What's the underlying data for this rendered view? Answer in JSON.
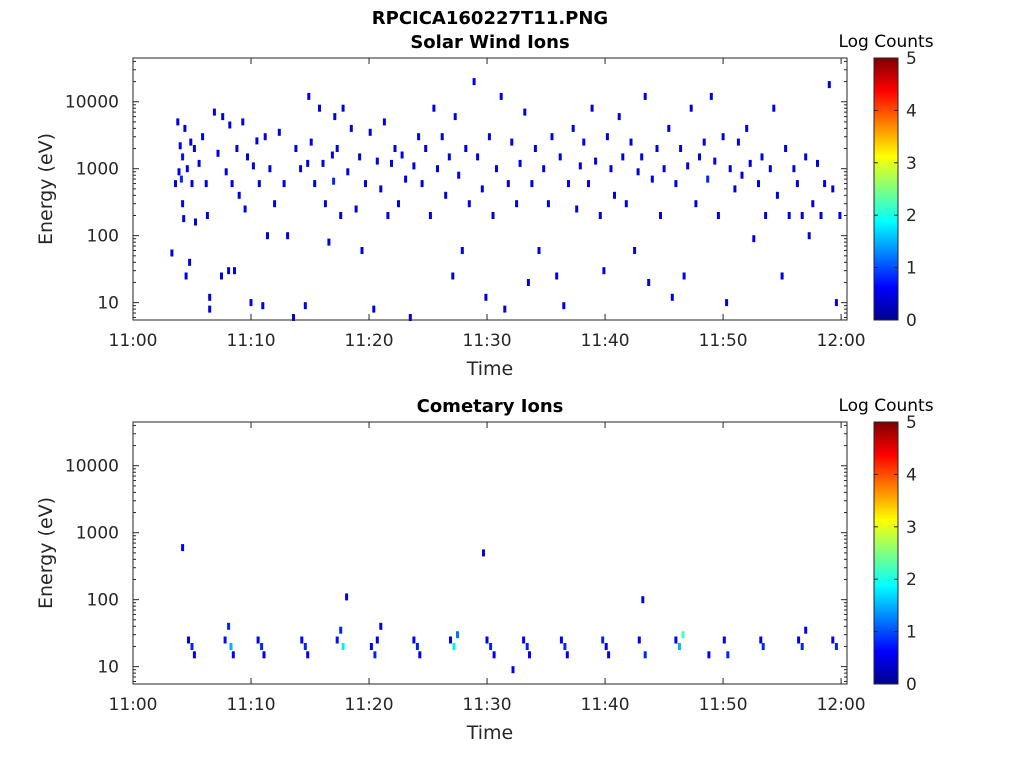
{
  "figure_title": "RPCICA160227T11.PNG",
  "chart_data": [
    {
      "type": "heatmap",
      "title": "Solar Wind Ions",
      "xlabel": "Time",
      "ylabel": "Energy (eV)",
      "x_ticks": [
        "11:00",
        "11:10",
        "11:20",
        "11:30",
        "11:40",
        "11:50",
        "12:00"
      ],
      "x_range_min": [
        0,
        60.5
      ],
      "y_ticks": [
        "10",
        "100",
        "1000",
        "10000"
      ],
      "y_scale": "log",
      "ylim": [
        5.5,
        45000
      ],
      "colorbar": {
        "label": "Log Counts",
        "range": [
          0,
          5
        ],
        "ticks": [
          "0",
          "1",
          "2",
          "3",
          "4",
          "5"
        ]
      },
      "cells": [
        [
          3.3,
          55,
          0.5
        ],
        [
          3.6,
          600,
          0.5
        ],
        [
          3.8,
          5000,
          0.5
        ],
        [
          3.9,
          900,
          0.5
        ],
        [
          4.0,
          2200,
          0.6
        ],
        [
          4.1,
          700,
          0.8
        ],
        [
          4.2,
          1500,
          0.7
        ],
        [
          4.2,
          300,
          0.5
        ],
        [
          4.3,
          180,
          0.5
        ],
        [
          4.4,
          4000,
          0.5
        ],
        [
          4.5,
          25,
          0.5
        ],
        [
          4.6,
          1000,
          0.5
        ],
        [
          4.8,
          40,
          0.5
        ],
        [
          4.9,
          2500,
          0.5
        ],
        [
          5.0,
          600,
          0.5
        ],
        [
          5.2,
          2000,
          0.5
        ],
        [
          5.3,
          160,
          0.5
        ],
        [
          5.6,
          1200,
          0.5
        ],
        [
          5.9,
          3000,
          0.5
        ],
        [
          6.2,
          600,
          0.5
        ],
        [
          6.3,
          200,
          0.5
        ],
        [
          6.5,
          12,
          0.5
        ],
        [
          6.5,
          8,
          0.5
        ],
        [
          6.9,
          7000,
          0.5
        ],
        [
          7.2,
          1700,
          0.5
        ],
        [
          7.5,
          25,
          0.5
        ],
        [
          7.6,
          6000,
          0.5
        ],
        [
          7.9,
          900,
          0.5
        ],
        [
          8.1,
          30,
          0.5
        ],
        [
          8.2,
          4500,
          0.5
        ],
        [
          8.4,
          600,
          0.5
        ],
        [
          8.6,
          30,
          0.5
        ],
        [
          8.8,
          2000,
          0.5
        ],
        [
          9.0,
          400,
          0.5
        ],
        [
          9.3,
          5000,
          0.5
        ],
        [
          9.5,
          250,
          0.5
        ],
        [
          9.7,
          1500,
          0.5
        ],
        [
          10.0,
          10,
          0.5
        ],
        [
          10.2,
          1100,
          0.5
        ],
        [
          10.5,
          2600,
          0.5
        ],
        [
          10.7,
          600,
          0.5
        ],
        [
          11.0,
          9,
          0.5
        ],
        [
          11.2,
          3000,
          0.5
        ],
        [
          11.4,
          100,
          0.5
        ],
        [
          11.6,
          1000,
          0.5
        ],
        [
          12.0,
          300,
          0.5
        ],
        [
          12.4,
          3500,
          0.5
        ],
        [
          12.8,
          600,
          0.5
        ],
        [
          13.1,
          100,
          0.5
        ],
        [
          13.6,
          6,
          0.5
        ],
        [
          13.8,
          2000,
          0.5
        ],
        [
          14.2,
          1000,
          0.5
        ],
        [
          14.6,
          9,
          0.5
        ],
        [
          14.8,
          1200,
          0.5
        ],
        [
          14.9,
          12000,
          0.5
        ],
        [
          15.1,
          2500,
          0.5
        ],
        [
          15.4,
          600,
          0.5
        ],
        [
          15.8,
          8000,
          0.5
        ],
        [
          16.1,
          1200,
          0.5
        ],
        [
          16.3,
          300,
          0.5
        ],
        [
          16.6,
          80,
          0.5
        ],
        [
          16.9,
          1600,
          0.6
        ],
        [
          17.0,
          650,
          0.8
        ],
        [
          17.1,
          6000,
          0.5
        ],
        [
          17.3,
          2000,
          0.5
        ],
        [
          17.6,
          200,
          0.5
        ],
        [
          17.8,
          8000,
          0.5
        ],
        [
          18.2,
          900,
          0.5
        ],
        [
          18.5,
          4000,
          0.5
        ],
        [
          18.9,
          250,
          0.5
        ],
        [
          19.2,
          1500,
          0.5
        ],
        [
          19.4,
          60,
          0.5
        ],
        [
          19.7,
          600,
          0.5
        ],
        [
          20.1,
          3500,
          0.5
        ],
        [
          20.4,
          8,
          0.5
        ],
        [
          20.7,
          1300,
          0.5
        ],
        [
          21.0,
          500,
          0.5
        ],
        [
          21.3,
          5000,
          0.5
        ],
        [
          21.6,
          200,
          0.5
        ],
        [
          21.9,
          1200,
          0.5
        ],
        [
          22.2,
          2000,
          0.5
        ],
        [
          22.5,
          300,
          0.5
        ],
        [
          22.8,
          1600,
          0.6
        ],
        [
          23.1,
          700,
          0.5
        ],
        [
          23.5,
          6,
          0.5
        ],
        [
          23.8,
          1100,
          0.5
        ],
        [
          24.2,
          3000,
          0.5
        ],
        [
          24.5,
          600,
          0.5
        ],
        [
          24.8,
          2000,
          0.5
        ],
        [
          25.2,
          200,
          0.5
        ],
        [
          25.5,
          8000,
          0.5
        ],
        [
          25.8,
          1000,
          0.5
        ],
        [
          26.2,
          3000,
          0.5
        ],
        [
          26.5,
          400,
          0.5
        ],
        [
          26.8,
          1500,
          0.5
        ],
        [
          27.1,
          25,
          0.5
        ],
        [
          27.3,
          6000,
          0.5
        ],
        [
          27.6,
          800,
          0.5
        ],
        [
          27.9,
          60,
          0.5
        ],
        [
          28.2,
          2000,
          0.5
        ],
        [
          28.5,
          300,
          0.5
        ],
        [
          28.9,
          20000,
          0.5
        ],
        [
          29.2,
          1500,
          0.5
        ],
        [
          29.6,
          500,
          0.5
        ],
        [
          29.9,
          12,
          0.5
        ],
        [
          30.2,
          3000,
          0.5
        ],
        [
          30.5,
          200,
          0.5
        ],
        [
          30.8,
          1000,
          0.5
        ],
        [
          31.2,
          12000,
          0.5
        ],
        [
          31.5,
          8,
          0.5
        ],
        [
          31.8,
          600,
          0.5
        ],
        [
          32.1,
          2500,
          0.5
        ],
        [
          32.5,
          300,
          0.5
        ],
        [
          32.8,
          1200,
          0.5
        ],
        [
          33.2,
          7000,
          0.5
        ],
        [
          33.5,
          20,
          0.5
        ],
        [
          33.8,
          600,
          0.5
        ],
        [
          34.1,
          2000,
          0.5
        ],
        [
          34.4,
          60,
          0.5
        ],
        [
          34.8,
          1000,
          0.5
        ],
        [
          35.2,
          300,
          0.5
        ],
        [
          35.5,
          3000,
          0.5
        ],
        [
          35.9,
          25,
          0.5
        ],
        [
          36.2,
          1500,
          0.5
        ],
        [
          36.5,
          9,
          0.5
        ],
        [
          36.9,
          600,
          0.5
        ],
        [
          37.3,
          4000,
          0.5
        ],
        [
          37.6,
          250,
          0.5
        ],
        [
          37.9,
          1100,
          0.5
        ],
        [
          38.2,
          2500,
          0.5
        ],
        [
          38.6,
          600,
          0.5
        ],
        [
          38.9,
          8000,
          0.5
        ],
        [
          39.2,
          1300,
          0.5
        ],
        [
          39.6,
          200,
          0.5
        ],
        [
          39.9,
          30,
          0.5
        ],
        [
          40.2,
          3000,
          0.5
        ],
        [
          40.5,
          1000,
          0.5
        ],
        [
          40.8,
          400,
          0.5
        ],
        [
          41.2,
          6000,
          0.5
        ],
        [
          41.5,
          1500,
          0.5
        ],
        [
          41.8,
          300,
          0.5
        ],
        [
          42.2,
          2500,
          0.5
        ],
        [
          42.5,
          60,
          0.5
        ],
        [
          42.8,
          900,
          0.5
        ],
        [
          43.1,
          1500,
          0.6
        ],
        [
          43.4,
          12000,
          0.5
        ],
        [
          43.7,
          20,
          0.5
        ],
        [
          44.0,
          700,
          0.5
        ],
        [
          44.4,
          2000,
          0.5
        ],
        [
          44.7,
          200,
          0.5
        ],
        [
          45.0,
          1000,
          0.5
        ],
        [
          45.4,
          4000,
          0.5
        ],
        [
          45.7,
          12,
          0.5
        ],
        [
          46.0,
          600,
          0.5
        ],
        [
          46.4,
          2000,
          0.5
        ],
        [
          46.7,
          25,
          0.6
        ],
        [
          47.0,
          1100,
          0.5
        ],
        [
          47.3,
          8000,
          0.5
        ],
        [
          47.7,
          300,
          0.5
        ],
        [
          48.0,
          1500,
          0.5
        ],
        [
          48.4,
          2500,
          0.5
        ],
        [
          48.7,
          700,
          0.8
        ],
        [
          49.0,
          12000,
          0.5
        ],
        [
          49.3,
          1300,
          0.5
        ],
        [
          49.6,
          200,
          0.5
        ],
        [
          50.0,
          3000,
          0.5
        ],
        [
          50.3,
          10,
          0.5
        ],
        [
          50.6,
          1000,
          0.5
        ],
        [
          51.0,
          500,
          0.5
        ],
        [
          51.3,
          2500,
          0.5
        ],
        [
          51.6,
          800,
          0.5
        ],
        [
          52.0,
          4000,
          0.5
        ],
        [
          52.3,
          1200,
          0.5
        ],
        [
          52.6,
          90,
          0.5
        ],
        [
          53.0,
          600,
          0.5
        ],
        [
          53.3,
          1500,
          0.5
        ],
        [
          53.6,
          200,
          0.5
        ],
        [
          54.0,
          1000,
          0.5
        ],
        [
          54.3,
          8000,
          0.5
        ],
        [
          54.6,
          400,
          0.5
        ],
        [
          55.0,
          25,
          0.5
        ],
        [
          55.3,
          2000,
          0.5
        ],
        [
          55.6,
          200,
          0.5
        ],
        [
          56.0,
          1000,
          0.5
        ],
        [
          56.3,
          600,
          0.5
        ],
        [
          56.7,
          200,
          0.5
        ],
        [
          57.0,
          1500,
          0.5
        ],
        [
          57.3,
          100,
          0.5
        ],
        [
          57.6,
          300,
          0.5
        ],
        [
          58.0,
          1200,
          0.5
        ],
        [
          58.3,
          200,
          0.5
        ],
        [
          58.6,
          600,
          0.5
        ],
        [
          59.0,
          18000,
          0.5
        ],
        [
          59.3,
          500,
          0.5
        ],
        [
          59.6,
          10,
          0.5
        ],
        [
          59.9,
          200,
          0.5
        ]
      ]
    },
    {
      "type": "heatmap",
      "title": "Cometary Ions",
      "xlabel": "Time",
      "ylabel": "Energy (eV)",
      "x_ticks": [
        "11:00",
        "11:10",
        "11:20",
        "11:30",
        "11:40",
        "11:50",
        "12:00"
      ],
      "y_ticks": [
        "10",
        "100",
        "1000",
        "10000"
      ],
      "y_scale": "log",
      "ylim": [
        5.5,
        45000
      ],
      "colorbar": {
        "label": "Log Counts",
        "range": [
          0,
          5
        ],
        "ticks": [
          "0",
          "1",
          "2",
          "3",
          "4",
          "5"
        ]
      },
      "cells": [
        [
          4.2,
          600,
          0.6
        ],
        [
          4.7,
          25,
          0.6
        ],
        [
          5.0,
          20,
          0.8
        ],
        [
          5.2,
          15,
          0.6
        ],
        [
          7.8,
          25,
          0.7
        ],
        [
          8.1,
          40,
          0.8
        ],
        [
          8.3,
          20,
          1.5
        ],
        [
          8.5,
          15,
          0.6
        ],
        [
          10.6,
          25,
          0.6
        ],
        [
          10.9,
          20,
          0.8
        ],
        [
          11.1,
          15,
          0.6
        ],
        [
          14.3,
          25,
          0.6
        ],
        [
          14.6,
          20,
          0.8
        ],
        [
          14.8,
          15,
          0.6
        ],
        [
          17.3,
          25,
          0.7
        ],
        [
          17.6,
          35,
          0.8
        ],
        [
          17.8,
          20,
          1.8
        ],
        [
          18.1,
          110,
          0.5
        ],
        [
          20.2,
          20,
          0.6
        ],
        [
          20.5,
          15,
          0.8
        ],
        [
          20.7,
          25,
          0.6
        ],
        [
          21.0,
          40,
          0.5
        ],
        [
          23.8,
          25,
          0.6
        ],
        [
          24.1,
          20,
          0.8
        ],
        [
          24.3,
          15,
          0.6
        ],
        [
          26.9,
          25,
          0.6
        ],
        [
          27.2,
          20,
          1.8
        ],
        [
          27.5,
          30,
          1.2
        ],
        [
          29.7,
          500,
          0.5
        ],
        [
          30.0,
          25,
          0.6
        ],
        [
          30.3,
          20,
          0.8
        ],
        [
          30.6,
          15,
          0.6
        ],
        [
          32.2,
          9,
          0.6
        ],
        [
          33.1,
          25,
          0.6
        ],
        [
          33.4,
          20,
          0.8
        ],
        [
          33.6,
          15,
          0.6
        ],
        [
          36.3,
          25,
          0.6
        ],
        [
          36.6,
          20,
          0.8
        ],
        [
          36.8,
          15,
          0.6
        ],
        [
          39.8,
          25,
          0.8
        ],
        [
          40.1,
          20,
          0.6
        ],
        [
          40.3,
          15,
          0.6
        ],
        [
          42.9,
          25,
          0.6
        ],
        [
          43.2,
          100,
          0.5
        ],
        [
          43.4,
          15,
          0.8
        ],
        [
          46.0,
          25,
          0.6
        ],
        [
          46.3,
          20,
          1.5
        ],
        [
          46.6,
          30,
          2.2
        ],
        [
          48.8,
          15,
          0.6
        ],
        [
          50.1,
          25,
          0.6
        ],
        [
          50.4,
          15,
          0.8
        ],
        [
          53.2,
          25,
          0.6
        ],
        [
          53.4,
          20,
          0.8
        ],
        [
          56.4,
          25,
          0.6
        ],
        [
          56.7,
          20,
          0.8
        ],
        [
          57.0,
          35,
          0.6
        ],
        [
          59.3,
          25,
          0.6
        ],
        [
          59.6,
          20,
          0.8
        ]
      ]
    }
  ]
}
